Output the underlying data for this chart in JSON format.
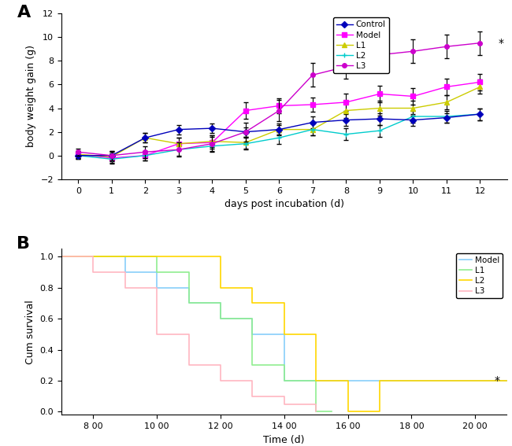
{
  "panel_a": {
    "days": [
      0,
      1,
      2,
      3,
      4,
      5,
      6,
      7,
      8,
      9,
      10,
      11,
      12
    ],
    "control": {
      "mean": [
        0.0,
        0.0,
        1.5,
        2.2,
        2.3,
        2.0,
        2.2,
        2.8,
        3.0,
        3.1,
        3.0,
        3.2,
        3.5
      ],
      "err": [
        0.3,
        0.4,
        0.4,
        0.4,
        0.4,
        0.4,
        0.4,
        0.5,
        0.5,
        0.5,
        0.5,
        0.4,
        0.5
      ],
      "color": "#0000BB",
      "marker": "D",
      "label": "Control"
    },
    "model": {
      "mean": [
        0.1,
        -0.2,
        0.0,
        1.0,
        1.1,
        3.8,
        4.2,
        4.3,
        4.5,
        5.2,
        5.0,
        5.8,
        6.2
      ],
      "err": [
        0.3,
        0.4,
        0.4,
        0.5,
        0.5,
        0.7,
        0.6,
        0.6,
        0.7,
        0.7,
        0.7,
        0.7,
        0.7
      ],
      "color": "#FF00FF",
      "marker": "s",
      "label": "Model"
    },
    "L1": {
      "mean": [
        0.1,
        -0.1,
        1.5,
        1.0,
        1.2,
        1.1,
        2.2,
        2.2,
        3.8,
        4.0,
        4.0,
        4.5,
        5.8
      ],
      "err": [
        0.3,
        0.4,
        0.4,
        0.5,
        0.5,
        0.5,
        0.5,
        0.5,
        0.6,
        0.6,
        0.6,
        0.6,
        0.6
      ],
      "color": "#CCCC00",
      "marker": "^",
      "label": "L1"
    },
    "L2": {
      "mean": [
        0.0,
        -0.3,
        0.0,
        0.5,
        0.8,
        1.0,
        1.5,
        2.2,
        1.8,
        2.1,
        3.3,
        3.3,
        3.5
      ],
      "err": [
        0.3,
        0.4,
        0.4,
        0.5,
        0.4,
        0.5,
        0.5,
        0.5,
        0.5,
        0.5,
        0.5,
        0.5,
        0.5
      ],
      "color": "#00CCCC",
      "marker": "+",
      "label": "L2"
    },
    "L3": {
      "mean": [
        0.3,
        0.0,
        0.3,
        0.5,
        1.0,
        2.0,
        3.8,
        6.8,
        7.5,
        8.5,
        8.8,
        9.2,
        9.5
      ],
      "err": [
        0.3,
        0.4,
        0.5,
        0.6,
        0.7,
        0.8,
        0.9,
        1.0,
        1.0,
        1.0,
        1.0,
        1.0,
        1.0
      ],
      "color": "#CC00CC",
      "marker": "o",
      "label": "L3"
    },
    "xlabel": "days post incubation (d)",
    "ylabel": "body weight gain (g)",
    "ylim": [
      -2,
      12
    ],
    "yticks": [
      -2,
      0,
      2,
      4,
      6,
      8,
      10,
      12
    ]
  },
  "panel_b": {
    "model_times": [
      7,
      9,
      9,
      10,
      10,
      11,
      11,
      12,
      12,
      13,
      13,
      14,
      14,
      15
    ],
    "model_survival": [
      1.0,
      1.0,
      0.9,
      0.9,
      0.8,
      0.8,
      0.7,
      0.7,
      0.6,
      0.6,
      0.5,
      0.5,
      0.2,
      0.2
    ],
    "model_color": "#87CEFA",
    "l1_times": [
      7,
      10,
      10,
      11,
      11,
      12,
      12,
      13,
      13,
      14,
      14,
      15,
      15,
      16
    ],
    "l1_survival": [
      1.0,
      1.0,
      0.9,
      0.9,
      0.7,
      0.7,
      0.6,
      0.6,
      0.3,
      0.3,
      0.2,
      0.2,
      0.0,
      0.0
    ],
    "l1_color": "#90EE90",
    "l2_times": [
      7,
      12,
      12,
      13,
      13,
      14,
      14,
      15,
      15,
      16,
      16,
      17,
      17,
      21
    ],
    "l2_survival": [
      1.0,
      1.0,
      0.8,
      0.8,
      0.7,
      0.7,
      0.5,
      0.5,
      0.2,
      0.2,
      0.0,
      0.0,
      0.2,
      0.2
    ],
    "l2_color": "#FFD700",
    "l3_times": [
      7,
      8,
      8,
      9,
      9,
      10,
      10,
      11,
      11,
      12,
      12,
      13,
      13,
      14,
      14,
      15
    ],
    "l3_survival": [
      1.0,
      0.9,
      0.9,
      0.8,
      0.8,
      0.5,
      0.5,
      0.3,
      0.3,
      0.2,
      0.2,
      0.1,
      0.1,
      0.05,
      0.05,
      0.0
    ],
    "l3_color": "#FFB6C1",
    "xlabel": "Time (d)",
    "ylabel": "Cum survival",
    "xlim": [
      7,
      21
    ],
    "ylim": [
      -0.02,
      1.05
    ],
    "xticks": [
      8,
      10,
      12,
      14,
      16,
      18,
      20
    ],
    "xtick_labels": [
      "8 00",
      "10 00",
      "12 00",
      "14 00",
      "16 00",
      "18 00",
      "20 00"
    ],
    "yticks": [
      0.0,
      0.2,
      0.4,
      0.6,
      0.8,
      1.0
    ]
  },
  "background_color": "#FFFFFF"
}
